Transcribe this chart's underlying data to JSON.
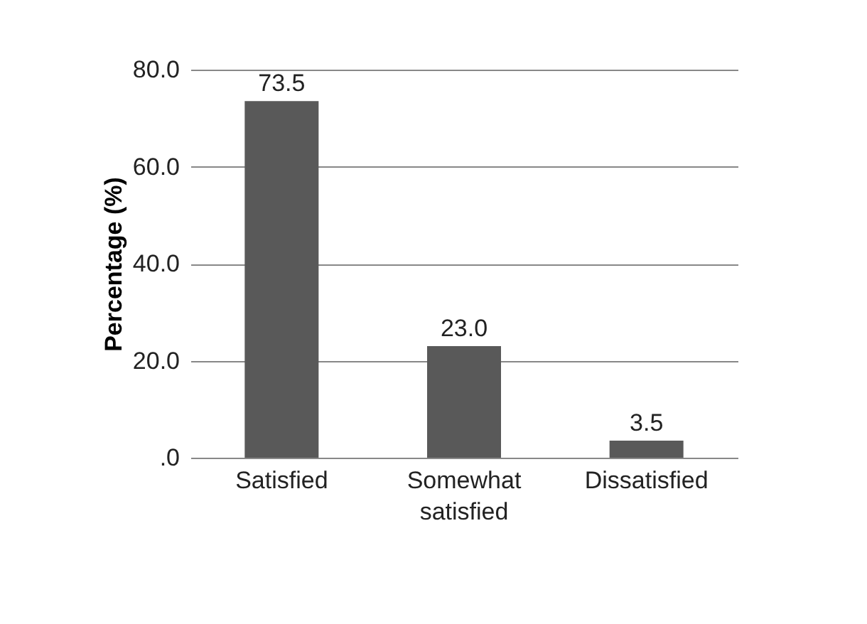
{
  "chart_data": {
    "type": "bar",
    "ylabel": "Percentage (%)",
    "categories": [
      "Satisfied",
      "Somewhat satisfied",
      "Dissatisfied"
    ],
    "values": [
      73.5,
      23.0,
      3.5
    ],
    "color": "#595959",
    "value_labels": [
      "73.5",
      "23.0",
      "3.5"
    ],
    "ylim": [
      0,
      80
    ],
    "yticks": [
      {
        "value": 0,
        "label": ".0"
      },
      {
        "value": 20,
        "label": "20.0"
      },
      {
        "value": 40,
        "label": "40.0"
      },
      {
        "value": 60,
        "label": "60.0"
      },
      {
        "value": 80,
        "label": "80.0"
      }
    ],
    "grid": "y"
  }
}
